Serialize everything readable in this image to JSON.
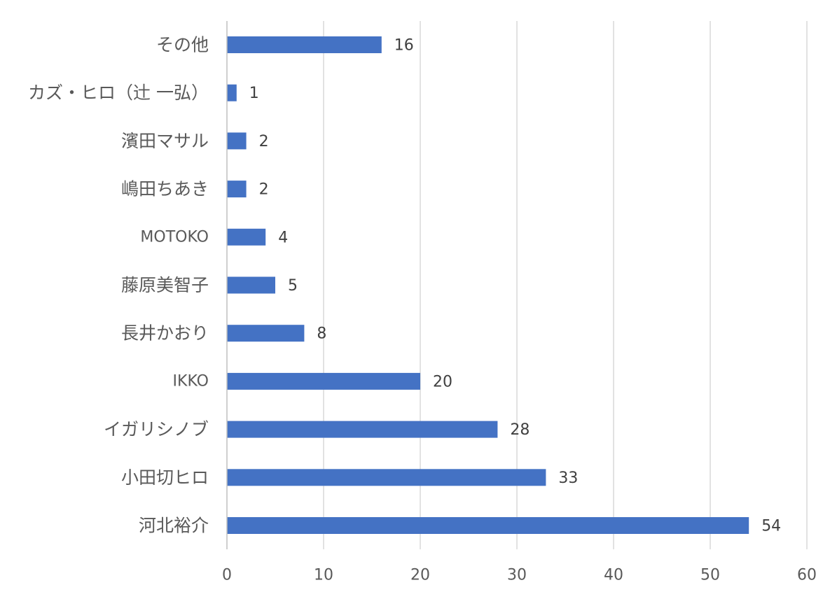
{
  "chart_data": {
    "type": "bar",
    "orientation": "horizontal",
    "categories": [
      "その他",
      "カズ・ヒロ（辻 一弘）",
      "濱田マサル",
      "嶋田ちあき",
      "MOTOKO",
      "藤原美智子",
      "長井かおり",
      "IKKO",
      "イガリシノブ",
      "小田切ヒロ",
      "河北裕介"
    ],
    "values": [
      16,
      1,
      2,
      2,
      4,
      5,
      8,
      20,
      28,
      33,
      54
    ],
    "title": "",
    "xlabel": "",
    "ylabel": "",
    "xlim": [
      0,
      60
    ],
    "x_ticks": [
      0,
      10,
      20,
      30,
      40,
      50,
      60
    ],
    "grid": true,
    "legend": "none",
    "data_labels": true,
    "bar_color": "#4472C4"
  }
}
